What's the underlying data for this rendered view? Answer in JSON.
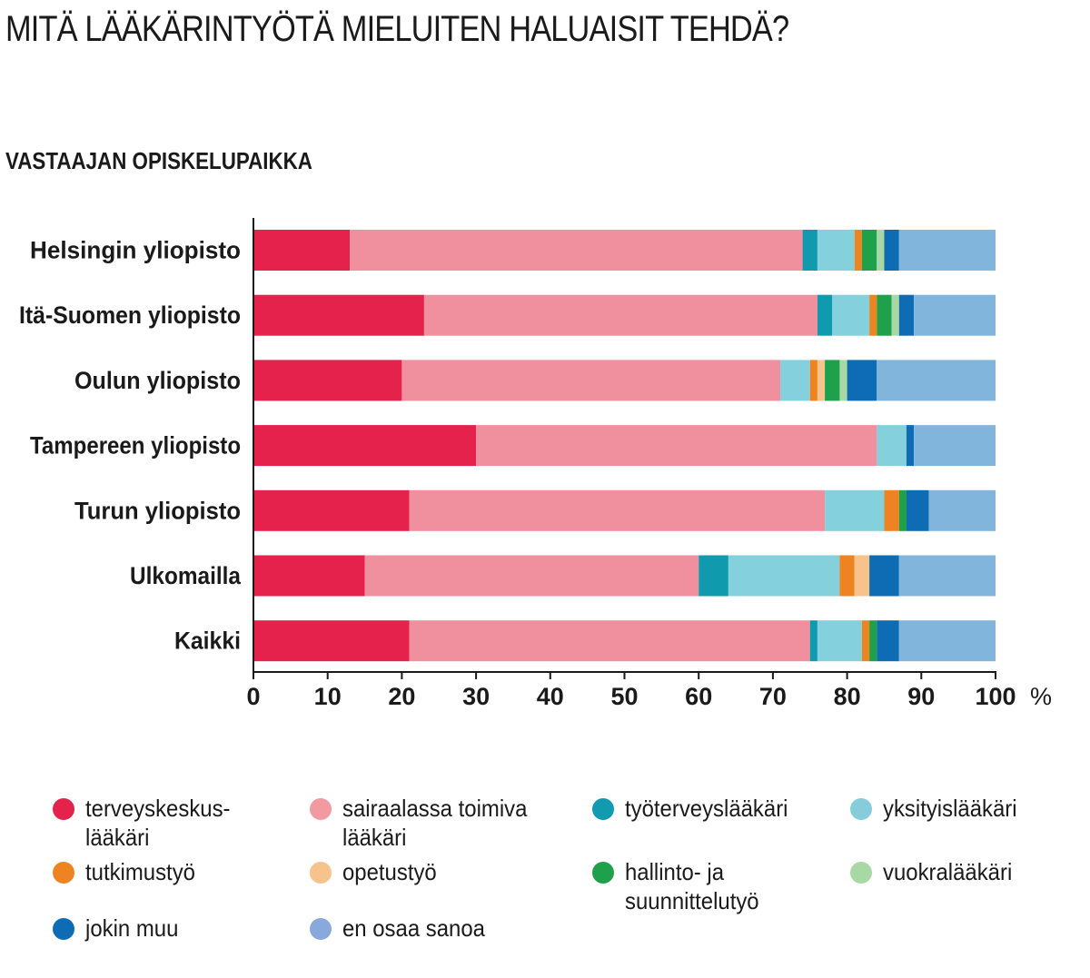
{
  "title": "MITÄ LÄÄKÄRINTYÖTÄ MIELUITEN HALUAISIT TEHDÄ?",
  "subtitle": "VASTAAJAN OPISKELUPAIKKA",
  "chart_data": {
    "type": "bar",
    "orientation": "horizontal",
    "stacked": true,
    "x_unit": "%",
    "xlim": [
      0,
      100
    ],
    "x_ticks": [
      0,
      10,
      20,
      30,
      40,
      50,
      60,
      70,
      80,
      90,
      100
    ],
    "legend_position": "bottom",
    "grid": false,
    "categories": [
      "Helsingin yliopisto",
      "Itä-Suomen yliopisto",
      "Oulun yliopisto",
      "Tampereen yliopisto",
      "Turun yliopisto",
      "Ulkomailla",
      "Kaikki"
    ],
    "series": [
      {
        "name": "terveyskeskus-\nlääkäri",
        "color": "#e4224b",
        "values": [
          13,
          23,
          20,
          30,
          21,
          15,
          21
        ]
      },
      {
        "name": "sairaalassa toimiva\nlääkäri",
        "color": "#f0909f",
        "values": [
          61,
          53,
          51,
          54,
          56,
          45,
          54
        ]
      },
      {
        "name": "työterveyslääkäri",
        "color": "#0f9aad",
        "values": [
          2,
          2,
          0,
          0,
          0,
          4,
          1
        ]
      },
      {
        "name": "yksityislääkäri",
        "color": "#84d0dc",
        "values": [
          5,
          5,
          4,
          4,
          8,
          15,
          6
        ]
      },
      {
        "name": "tutkimustyö",
        "color": "#ee8421",
        "values": [
          1,
          1,
          1,
          0,
          2,
          2,
          1
        ]
      },
      {
        "name": "opetustyö",
        "color": "#f6c38d",
        "values": [
          0,
          0,
          1,
          0,
          0,
          2,
          0
        ]
      },
      {
        "name": "hallinto- ja\nsuunnittelutyö",
        "color": "#1fa04a",
        "values": [
          2,
          2,
          2,
          0,
          1,
          0,
          1
        ]
      },
      {
        "name": "vuokralääkäri",
        "color": "#a8d9a4",
        "values": [
          1,
          1,
          1,
          0,
          0,
          0,
          0
        ]
      },
      {
        "name": "jokin muu",
        "color": "#0d6cb4",
        "values": [
          2,
          2,
          4,
          1,
          3,
          4,
          3
        ]
      },
      {
        "name": "en osaa sanoa",
        "color": "#82b5dc",
        "values": [
          13,
          11,
          16,
          11,
          9,
          13,
          13
        ]
      }
    ],
    "legend_dot_colors": [
      "#e4224b",
      "#f29aa2",
      "#119ab0",
      "#86ccdb",
      "#ee8421",
      "#f6c38d",
      "#1fa04a",
      "#a8d9a4",
      "#0d6cb4",
      "#89a8dc"
    ]
  }
}
